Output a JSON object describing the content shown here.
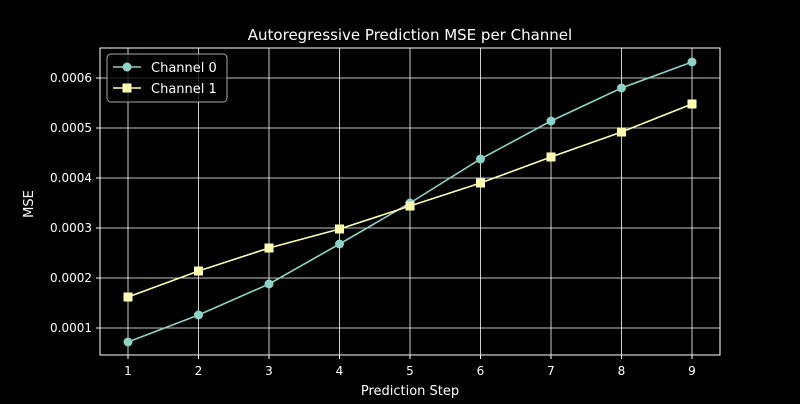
{
  "chart_data": {
    "type": "line",
    "title": "Autoregressive Prediction MSE per Channel",
    "xlabel": "Prediction Step",
    "ylabel": "MSE",
    "x": [
      1,
      2,
      3,
      4,
      5,
      6,
      7,
      8,
      9
    ],
    "xticks": [
      "1",
      "2",
      "3",
      "4",
      "5",
      "6",
      "7",
      "8",
      "9"
    ],
    "yticks": [
      "0.0001",
      "0.0002",
      "0.0003",
      "0.0004",
      "0.0005",
      "0.0006"
    ],
    "ylim": [
      4.6e-05,
      0.00066
    ],
    "xlim": [
      0.6,
      9.4
    ],
    "grid": true,
    "legend_position": "upper left",
    "series": [
      {
        "name": "Channel 0",
        "marker": "circle",
        "color": "#8dd3c7",
        "values": [
          7.2e-05,
          0.000126,
          0.000188,
          0.000268,
          0.00035,
          0.000438,
          0.000514,
          0.00058,
          0.000632
        ]
      },
      {
        "name": "Channel 1",
        "marker": "square",
        "color": "#ffffb3",
        "values": [
          0.000162,
          0.000214,
          0.00026,
          0.000298,
          0.000344,
          0.00039,
          0.000442,
          0.000492,
          0.000548
        ]
      }
    ]
  }
}
